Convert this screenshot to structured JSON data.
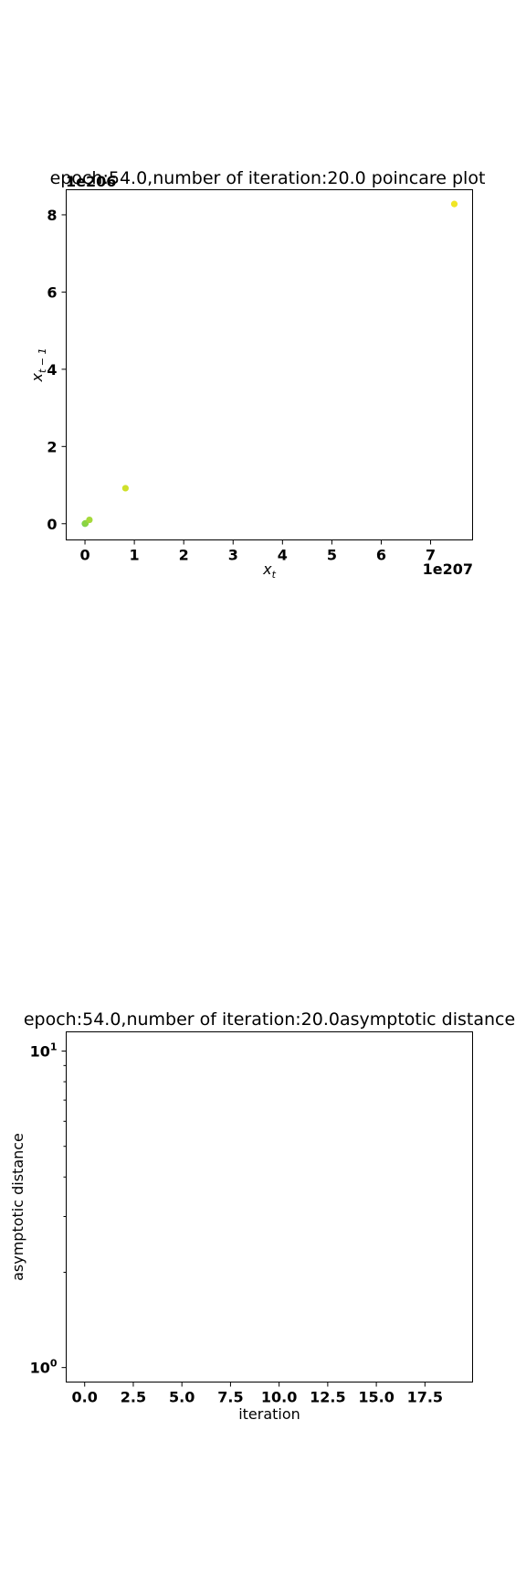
{
  "chart_data": [
    {
      "type": "scatter",
      "title": "epoch:54.0,number of iteration:20.0 poincare plot",
      "xlabel_main": "x",
      "xlabel_sub": "t",
      "ylabel_main": "x",
      "ylabel_sub": "t − 1",
      "x_offset_label": "1e207",
      "y_offset_label": "1e206",
      "xlim": [
        -0.38,
        7.85
      ],
      "ylim": [
        -0.42,
        8.65
      ],
      "x_ticks": [
        0,
        1,
        2,
        3,
        4,
        5,
        6,
        7
      ],
      "x_tick_labels": [
        "0",
        "1",
        "2",
        "3",
        "4",
        "5",
        "6",
        "7"
      ],
      "y_ticks": [
        0,
        2,
        4,
        6,
        8
      ],
      "y_tick_labels": [
        "0",
        "2",
        "4",
        "6",
        "8"
      ],
      "points": [
        {
          "x": 0.0,
          "y": 0.0,
          "color": "#5fc75a"
        },
        {
          "x": 0.005,
          "y": 0.005,
          "color": "#73cf4f"
        },
        {
          "x": 0.01,
          "y": 0.01,
          "color": "#8ad443"
        },
        {
          "x": 0.09,
          "y": 0.1,
          "color": "#a5d93a"
        },
        {
          "x": 0.82,
          "y": 0.92,
          "color": "#cfe02b"
        },
        {
          "x": 7.48,
          "y": 8.28,
          "color": "#f0e624"
        }
      ]
    },
    {
      "type": "line",
      "title": "epoch:54.0,number of iteration:20.0asymptotic distance",
      "xlabel": "iteration",
      "ylabel": "asymptotic distance",
      "yscale": "log",
      "xlim": [
        -0.95,
        19.95
      ],
      "ylim": [
        0.9,
        11.5
      ],
      "x_ticks": [
        0,
        2.5,
        5,
        7.5,
        10,
        12.5,
        15,
        17.5
      ],
      "x_tick_labels": [
        "0.0",
        "2.5",
        "5.0",
        "7.5",
        "10.0",
        "12.5",
        "15.0",
        "17.5"
      ],
      "y_major_ticks": [
        1,
        10
      ],
      "y_tick_labels": [
        "10",
        "10"
      ],
      "y_tick_exponents": [
        "0",
        "1"
      ],
      "y_minor_ticks": [
        2,
        3,
        4,
        5,
        6,
        7,
        8,
        9
      ],
      "series": []
    }
  ]
}
